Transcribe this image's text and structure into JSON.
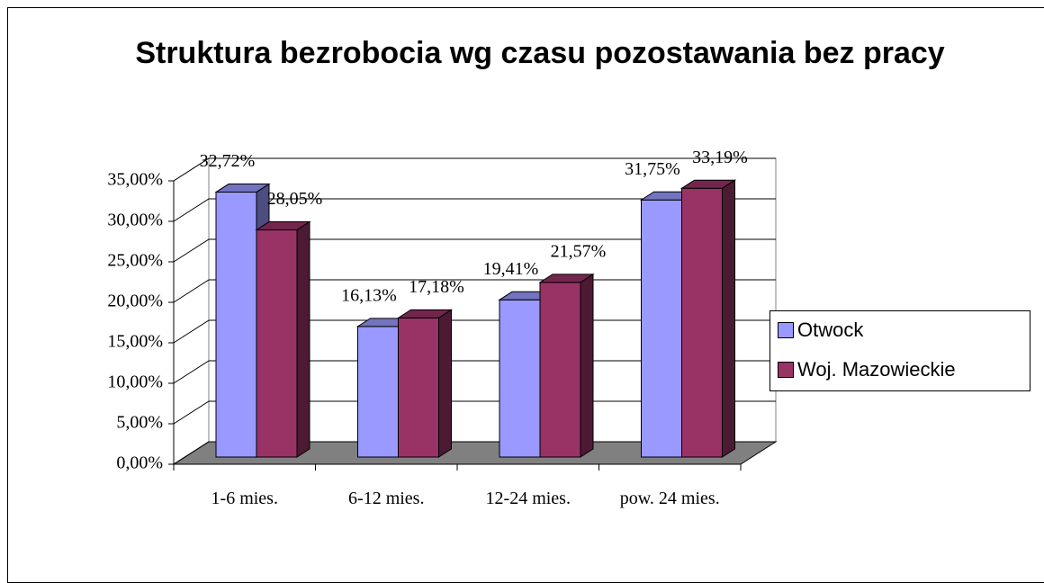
{
  "chart_data": {
    "type": "bar3d",
    "title": "Struktura bezrobocia wg czasu pozostawania bez pracy",
    "categories": [
      "1-6 mies.",
      "6-12 mies.",
      "12-24 mies.",
      "pow. 24 mies."
    ],
    "series": [
      {
        "name": "Otwock",
        "color": "#9999ff",
        "values": [
          32.72,
          16.13,
          19.41,
          31.75
        ],
        "value_labels": [
          "32,72%",
          "16,13%",
          "19,41%",
          "31,75%"
        ]
      },
      {
        "name": "Woj. Mazowieckie",
        "color": "#993366",
        "values": [
          28.05,
          17.18,
          21.57,
          33.19
        ],
        "value_labels": [
          "28,05%",
          "17,18%",
          "21,57%",
          "33,19%"
        ]
      }
    ],
    "ylim": [
      0,
      35
    ],
    "yticks": [
      {
        "value": 0,
        "label": "0,00%"
      },
      {
        "value": 5,
        "label": "5,00%"
      },
      {
        "value": 10,
        "label": "10,00%"
      },
      {
        "value": 15,
        "label": "15,00%"
      },
      {
        "value": 20,
        "label": "20,00%"
      },
      {
        "value": 25,
        "label": "25,00%"
      },
      {
        "value": 30,
        "label": "30,00%"
      },
      {
        "value": 35,
        "label": "35,00%"
      }
    ],
    "grid": true,
    "legend": "right"
  }
}
